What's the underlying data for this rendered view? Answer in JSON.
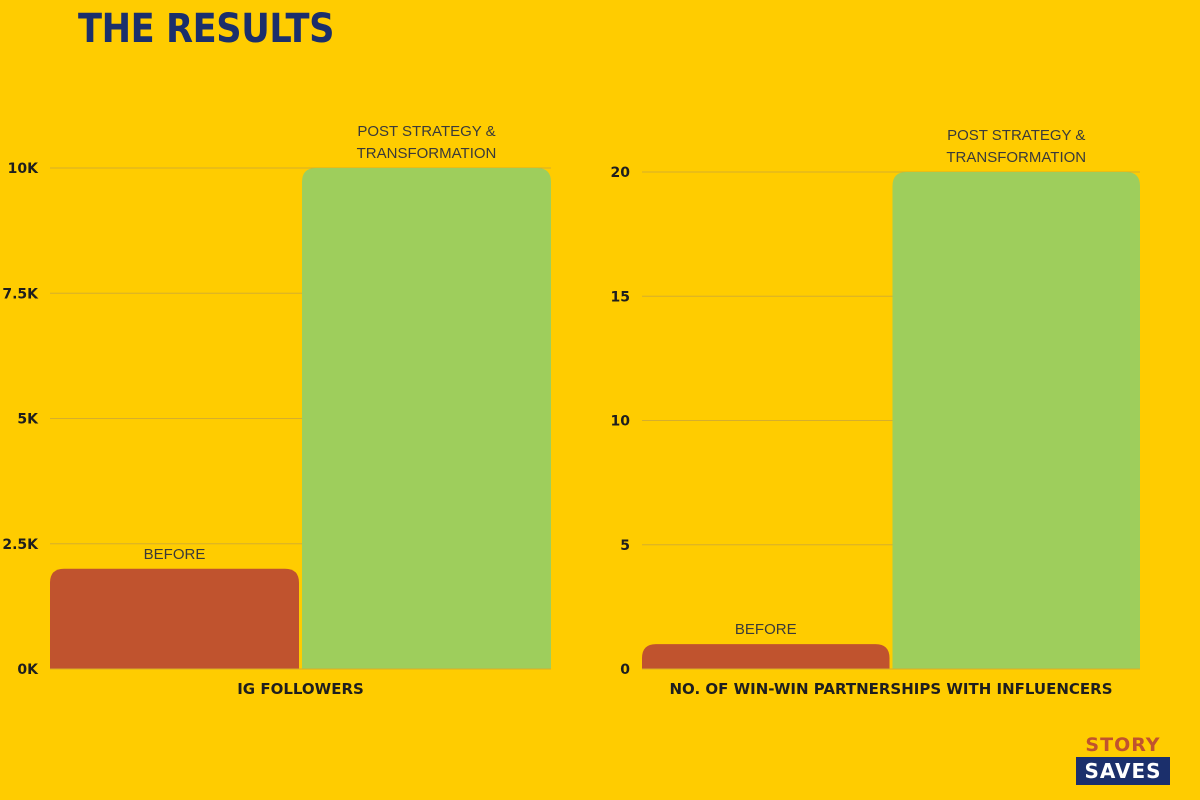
{
  "page": {
    "title": "THE RESULTS",
    "logo_top": "STORY",
    "logo_bottom": "SAVES"
  },
  "colors": {
    "background": "#FFCC00",
    "before": "#C0532E",
    "after": "#9ECE5C",
    "title": "#1B2F6B",
    "grid": "#D6AE2C"
  },
  "chart_data": [
    {
      "type": "bar",
      "title": "",
      "xlabel": "IG FOLLOWERS",
      "ylabel": "",
      "categories": [
        "BEFORE",
        "POST STRATEGY & TRANSFORMATION"
      ],
      "category_label_lines": [
        [
          "BEFORE"
        ],
        [
          "POST STRATEGY &",
          "TRANSFORMATION"
        ]
      ],
      "values": [
        2000,
        10000
      ],
      "ylim": [
        0,
        10000
      ],
      "yticks": [
        0,
        2500,
        5000,
        7500,
        10000
      ],
      "ytick_labels": [
        "0K",
        "2.5K",
        "5K",
        "7.5K",
        "10K"
      ],
      "grid": true,
      "legend": "none"
    },
    {
      "type": "bar",
      "title": "",
      "xlabel": "NO. OF WIN-WIN PARTNERSHIPS WITH INFLUENCERS",
      "ylabel": "",
      "categories": [
        "BEFORE",
        "POST STRATEGY & TRANSFORMATION"
      ],
      "category_label_lines": [
        [
          "BEFORE"
        ],
        [
          "POST STRATEGY &",
          "TRANSFORMATION"
        ]
      ],
      "values": [
        1,
        20
      ],
      "ylim": [
        0,
        20
      ],
      "yticks": [
        0,
        5,
        10,
        15,
        20
      ],
      "ytick_labels": [
        "0",
        "5",
        "10",
        "15",
        "20"
      ],
      "grid": true,
      "legend": "none"
    }
  ]
}
